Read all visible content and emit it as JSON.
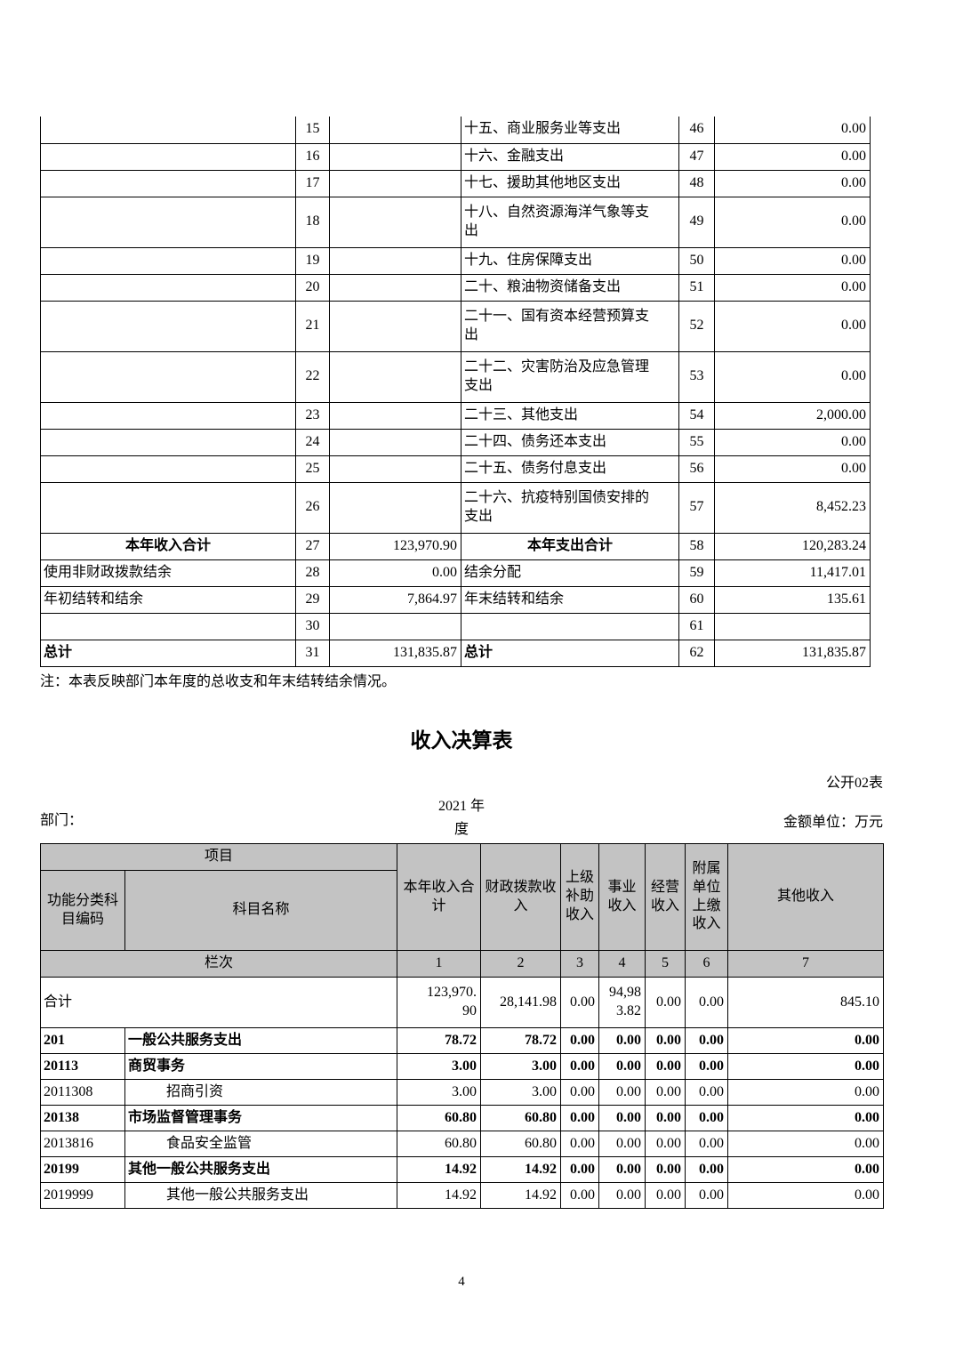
{
  "summary_table": {
    "rows": [
      {
        "left_label": "",
        "left_style": "plain",
        "left_no": "15",
        "left_value": "",
        "right_label": "十五、商业服务业等支出",
        "right_style": "plain",
        "right_no": "46",
        "right_value": "0.00",
        "tall": false
      },
      {
        "left_label": "",
        "left_style": "plain",
        "left_no": "16",
        "left_value": "",
        "right_label": "十六、金融支出",
        "right_style": "plain",
        "right_no": "47",
        "right_value": "0.00",
        "tall": false
      },
      {
        "left_label": "",
        "left_style": "plain",
        "left_no": "17",
        "left_value": "",
        "right_label": "十七、援助其他地区支出",
        "right_style": "plain",
        "right_no": "48",
        "right_value": "0.00",
        "tall": false
      },
      {
        "left_label": "",
        "left_style": "plain",
        "left_no": "18",
        "left_value": "",
        "right_label": "十八、自然资源海洋气象等支出",
        "right_style": "plain",
        "right_no": "49",
        "right_value": "0.00",
        "tall": true
      },
      {
        "left_label": "",
        "left_style": "plain",
        "left_no": "19",
        "left_value": "",
        "right_label": "十九、住房保障支出",
        "right_style": "plain",
        "right_no": "50",
        "right_value": "0.00",
        "tall": false
      },
      {
        "left_label": "",
        "left_style": "plain",
        "left_no": "20",
        "left_value": "",
        "right_label": "二十、粮油物资储备支出",
        "right_style": "plain",
        "right_no": "51",
        "right_value": "0.00",
        "tall": false
      },
      {
        "left_label": "",
        "left_style": "plain",
        "left_no": "21",
        "left_value": "",
        "right_label": "二十一、国有资本经营预算支出",
        "right_style": "plain",
        "right_no": "52",
        "right_value": "0.00",
        "tall": true
      },
      {
        "left_label": "",
        "left_style": "plain",
        "left_no": "22",
        "left_value": "",
        "right_label": "二十二、灾害防治及应急管理支出",
        "right_style": "plain",
        "right_no": "53",
        "right_value": "0.00",
        "tall": true
      },
      {
        "left_label": "",
        "left_style": "plain",
        "left_no": "23",
        "left_value": "",
        "right_label": "二十三、其他支出",
        "right_style": "plain",
        "right_no": "54",
        "right_value": "2,000.00",
        "tall": false
      },
      {
        "left_label": "",
        "left_style": "plain",
        "left_no": "24",
        "left_value": "",
        "right_label": "二十四、债务还本支出",
        "right_style": "plain",
        "right_no": "55",
        "right_value": "0.00",
        "tall": false
      },
      {
        "left_label": "",
        "left_style": "plain",
        "left_no": "25",
        "left_value": "",
        "right_label": "二十五、债务付息支出",
        "right_style": "plain",
        "right_no": "56",
        "right_value": "0.00",
        "tall": false
      },
      {
        "left_label": "",
        "left_style": "plain",
        "left_no": "26",
        "left_value": "",
        "right_label": "二十六、抗疫特别国债安排的支出",
        "right_style": "plain",
        "right_no": "57",
        "right_value": "8,452.23",
        "tall": true
      },
      {
        "left_label": "本年收入合计",
        "left_style": "center-bold",
        "left_no": "27",
        "left_value": "123,970.90",
        "right_label": "本年支出合计",
        "right_style": "center-bold",
        "right_no": "58",
        "right_value": "120,283.24",
        "tall": false
      },
      {
        "left_label": "使用非财政拨款结余",
        "left_style": "plain",
        "left_no": "28",
        "left_value": "0.00",
        "right_label": "结余分配",
        "right_style": "plain",
        "right_no": "59",
        "right_value": "11,417.01",
        "tall": false
      },
      {
        "left_label": "年初结转和结余",
        "left_style": "plain",
        "left_no": "29",
        "left_value": "7,864.97",
        "right_label": "年末结转和结余",
        "right_style": "plain",
        "right_no": "60",
        "right_value": "135.61",
        "tall": false
      },
      {
        "left_label": "",
        "left_style": "plain",
        "left_no": "30",
        "left_value": "",
        "right_label": "",
        "right_style": "plain",
        "right_no": "61",
        "right_value": "",
        "tall": false
      },
      {
        "left_label": "总计",
        "left_style": "bold",
        "left_no": "31",
        "left_value": "131,835.87",
        "right_label": "总计",
        "right_style": "bold",
        "right_no": "62",
        "right_value": "131,835.87",
        "tall": false
      }
    ]
  },
  "note": "注：本表反映部门本年度的总收支和年末结转结余情况。",
  "income_section": {
    "title": "收入决算表",
    "table_code": "公开02表",
    "dept_label": "部门：",
    "year_line1": "2021 年",
    "year_line2": "度",
    "unit_label": "金额单位：万元"
  },
  "income_table": {
    "header": {
      "project": "项目",
      "code": "功能分类科目编码",
      "name": "科目名称",
      "cols": [
        "本年收入合计",
        "财政拨款收入",
        "上级补助收入",
        "事业收入",
        "经营收入",
        "附属单位上缴收入",
        "其他收入"
      ],
      "lanci": "栏次",
      "col_nos": [
        "1",
        "2",
        "3",
        "4",
        "5",
        "6",
        "7"
      ]
    },
    "rows": [
      {
        "code": "",
        "name": "合计",
        "merged": true,
        "bold": false,
        "indent": false,
        "values": [
          "123,970.90",
          "28,141.98",
          "0.00",
          "94,983.82",
          "0.00",
          "0.00",
          "845.10"
        ]
      },
      {
        "code": "201",
        "name": "一般公共服务支出",
        "merged": false,
        "bold": true,
        "indent": false,
        "values": [
          "78.72",
          "78.72",
          "0.00",
          "0.00",
          "0.00",
          "0.00",
          "0.00"
        ]
      },
      {
        "code": "20113",
        "name": "商贸事务",
        "merged": false,
        "bold": true,
        "indent": false,
        "values": [
          "3.00",
          "3.00",
          "0.00",
          "0.00",
          "0.00",
          "0.00",
          "0.00"
        ]
      },
      {
        "code": "2011308",
        "name": "招商引资",
        "merged": false,
        "bold": false,
        "indent": true,
        "values": [
          "3.00",
          "3.00",
          "0.00",
          "0.00",
          "0.00",
          "0.00",
          "0.00"
        ]
      },
      {
        "code": "20138",
        "name": "市场监督管理事务",
        "merged": false,
        "bold": true,
        "indent": false,
        "values": [
          "60.80",
          "60.80",
          "0.00",
          "0.00",
          "0.00",
          "0.00",
          "0.00"
        ]
      },
      {
        "code": "2013816",
        "name": "食品安全监管",
        "merged": false,
        "bold": false,
        "indent": true,
        "values": [
          "60.80",
          "60.80",
          "0.00",
          "0.00",
          "0.00",
          "0.00",
          "0.00"
        ]
      },
      {
        "code": "20199",
        "name": "其他一般公共服务支出",
        "merged": false,
        "bold": true,
        "indent": false,
        "values": [
          "14.92",
          "14.92",
          "0.00",
          "0.00",
          "0.00",
          "0.00",
          "0.00"
        ]
      },
      {
        "code": "2019999",
        "name": "其他一般公共服务支出",
        "merged": false,
        "bold": false,
        "indent": true,
        "values": [
          "14.92",
          "14.92",
          "0.00",
          "0.00",
          "0.00",
          "0.00",
          "0.00"
        ]
      }
    ]
  },
  "page_number": "4"
}
